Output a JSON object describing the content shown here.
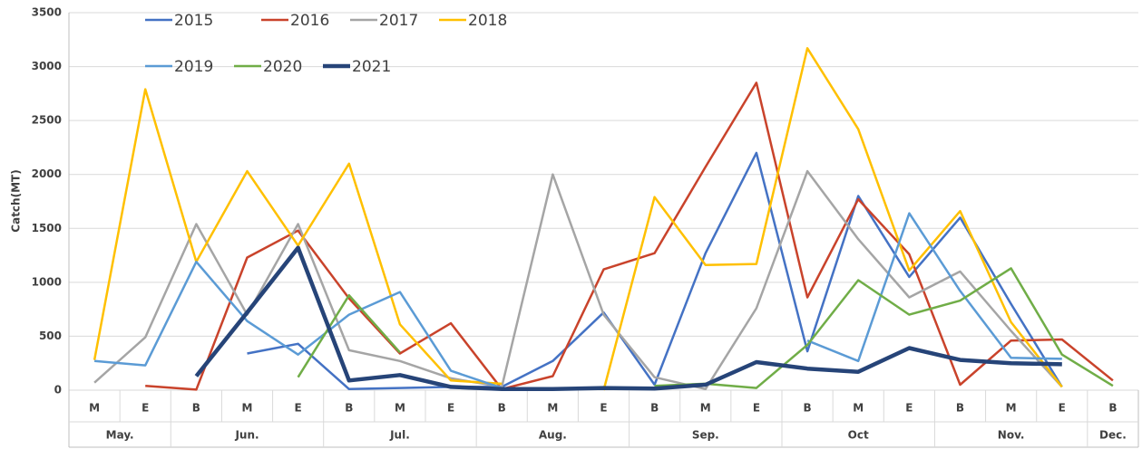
{
  "chart_data": {
    "type": "line",
    "y_label": "Catch(MT)",
    "groups": [
      {
        "name": "May.",
        "labels": [
          "M",
          "E"
        ]
      },
      {
        "name": "Jun.",
        "labels": [
          "B",
          "M",
          "E"
        ]
      },
      {
        "name": "Jul.",
        "labels": [
          "B",
          "M",
          "E"
        ]
      },
      {
        "name": "Aug.",
        "labels": [
          "B",
          "M",
          "E"
        ]
      },
      {
        "name": "Sep.",
        "labels": [
          "B",
          "M",
          "E"
        ]
      },
      {
        "name": "Oct",
        "labels": [
          "B",
          "M",
          "E"
        ]
      },
      {
        "name": "Nov.",
        "labels": [
          "B",
          "M",
          "E"
        ]
      },
      {
        "name": "Dec.",
        "labels": [
          "B"
        ]
      }
    ],
    "ylim": [
      0,
      3500
    ],
    "yticks": [
      0,
      500,
      1000,
      1500,
      2000,
      2500,
      3000,
      3500
    ],
    "grid": true,
    "series": [
      {
        "name": "2015",
        "color": "#4472c4",
        "width": 2.5,
        "values": [
          null,
          null,
          null,
          340,
          430,
          10,
          20,
          30,
          30,
          270,
          720,
          50,
          1270,
          2200,
          360,
          1800,
          1050,
          1600,
          800,
          30,
          null
        ]
      },
      {
        "name": "2016",
        "color": "#c9432b",
        "width": 2.5,
        "values": [
          null,
          40,
          5,
          1230,
          1480,
          850,
          340,
          620,
          10,
          130,
          1120,
          1270,
          2070,
          2850,
          860,
          1770,
          1260,
          50,
          460,
          470,
          90
        ]
      },
      {
        "name": "2017",
        "color": "#a5a5a5",
        "width": 2.5,
        "values": [
          70,
          490,
          1540,
          700,
          1540,
          370,
          270,
          110,
          30,
          2000,
          700,
          120,
          10,
          760,
          2030,
          1400,
          860,
          1100,
          550,
          30,
          null
        ]
      },
      {
        "name": "2018",
        "color": "#ffc000",
        "width": 2.5,
        "values": [
          280,
          2790,
          1190,
          2030,
          1340,
          2100,
          610,
          90,
          60,
          null,
          0,
          1790,
          1160,
          1170,
          3170,
          2420,
          1110,
          1660,
          630,
          30,
          null
        ]
      },
      {
        "name": "2019",
        "color": "#5b9bd5",
        "width": 2.5,
        "values": [
          270,
          230,
          1190,
          640,
          330,
          700,
          910,
          180,
          20,
          null,
          null,
          null,
          null,
          null,
          460,
          270,
          1640,
          920,
          300,
          290,
          null
        ]
      },
      {
        "name": "2020",
        "color": "#70ad47",
        "width": 2.5,
        "values": [
          null,
          null,
          null,
          null,
          120,
          880,
          350,
          null,
          null,
          null,
          null,
          40,
          60,
          20,
          420,
          1020,
          700,
          830,
          1130,
          330,
          40
        ]
      },
      {
        "name": "2021",
        "color": "#264478",
        "width": 4.5,
        "values": [
          null,
          null,
          130,
          720,
          1320,
          90,
          140,
          30,
          10,
          10,
          20,
          15,
          50,
          260,
          200,
          170,
          390,
          280,
          250,
          240,
          null
        ]
      }
    ]
  }
}
